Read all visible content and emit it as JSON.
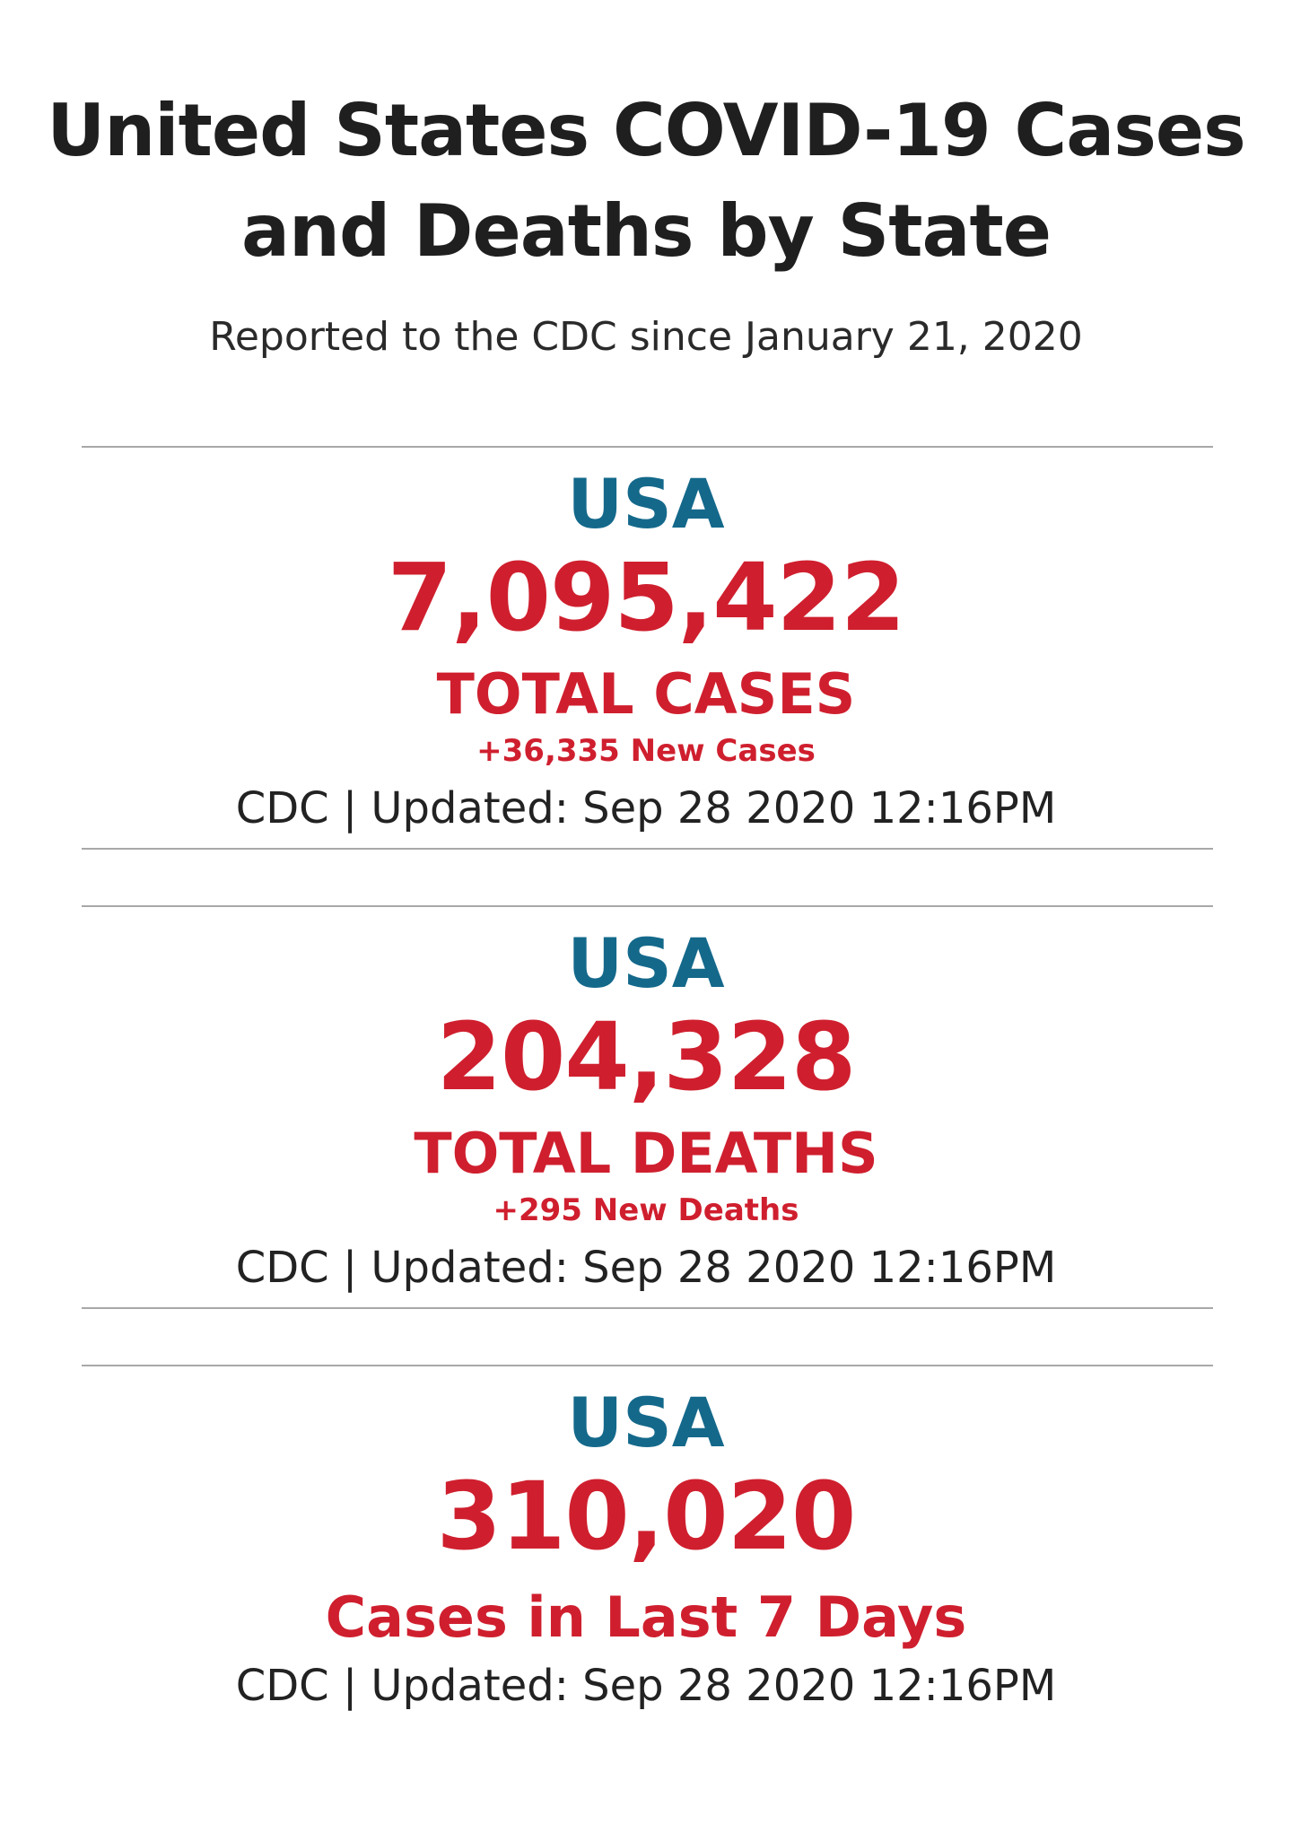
{
  "header": {
    "title_line1": "United States COVID-19 Cases",
    "title_line2": "and Deaths by State",
    "subtitle": "Reported to the CDC since January 21, 2020"
  },
  "cards": [
    {
      "region": "USA",
      "value": "7,095,422",
      "label": "TOTAL CASES",
      "change": "+36,335 New Cases",
      "updated": "CDC | Updated: Sep 28 2020 12:16PM"
    },
    {
      "region": "USA",
      "value": "204,328",
      "label": "TOTAL DEATHS",
      "change": "+295 New Deaths",
      "updated": "CDC | Updated: Sep 28 2020 12:16PM"
    },
    {
      "region": "USA",
      "value": "310,020",
      "label": "Cases in Last 7 Days",
      "updated": "CDC | Updated: Sep 28 2020 12:16PM"
    }
  ],
  "colors": {
    "region": "#14698b",
    "value": "#cf1f2e"
  }
}
